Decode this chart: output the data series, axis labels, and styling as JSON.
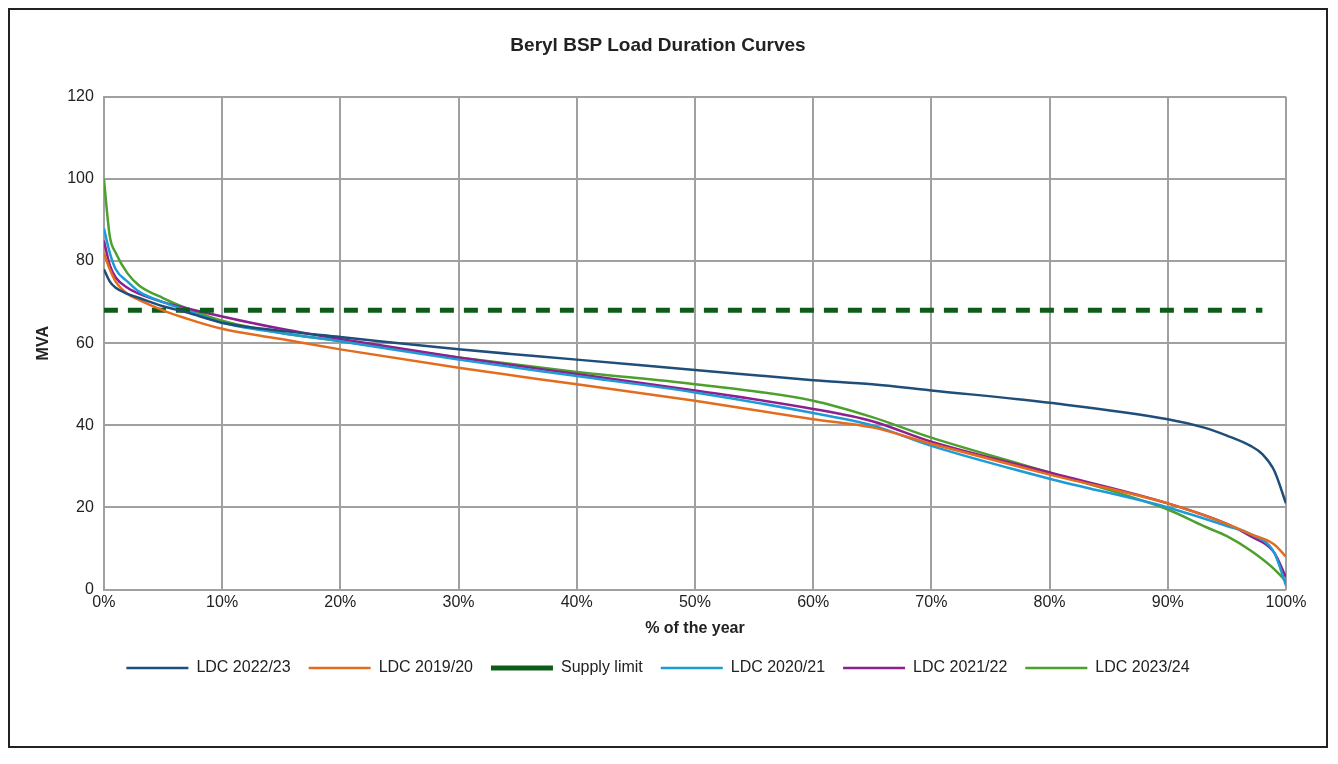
{
  "chart_data": {
    "type": "line",
    "title": "Beryl BSP Load Duration Curves",
    "xlabel": "% of the year",
    "ylabel": "MVA",
    "xlim": [
      0,
      100
    ],
    "xticks": [
      {
        "value": 0,
        "label": "0%"
      },
      {
        "value": 10,
        "label": "10%"
      },
      {
        "value": 20,
        "label": "20%"
      },
      {
        "value": 30,
        "label": "30%"
      },
      {
        "value": 40,
        "label": "40%"
      },
      {
        "value": 50,
        "label": "50%"
      },
      {
        "value": 60,
        "label": "60%"
      },
      {
        "value": 70,
        "label": "70%"
      },
      {
        "value": 80,
        "label": "80%"
      },
      {
        "value": 90,
        "label": "90%"
      },
      {
        "value": 100,
        "label": "100%"
      }
    ],
    "ylim": [
      0,
      120
    ],
    "yticks": [
      0,
      20,
      40,
      60,
      80,
      100,
      120
    ],
    "grid": true,
    "legend": "bottom",
    "marker": "none",
    "series": [
      {
        "name": "LDC 2022/23",
        "color": "#1f4e79",
        "x": [
          0,
          0.5,
          1,
          2,
          3,
          5,
          7,
          10,
          15,
          20,
          30,
          40,
          50,
          60,
          65,
          70,
          80,
          90,
          93,
          95,
          97,
          98,
          99,
          100
        ],
        "values": [
          78,
          75,
          73.5,
          72,
          71,
          69,
          67.5,
          65,
          63,
          61.5,
          58.5,
          56,
          53.5,
          51,
          50,
          48.5,
          45.5,
          41.5,
          39.5,
          37.5,
          35,
          33,
          29,
          21
        ]
      },
      {
        "name": "LDC 2019/20",
        "color": "#e46c1f",
        "x": [
          0,
          0.5,
          1,
          2,
          3,
          5,
          7,
          10,
          15,
          20,
          30,
          40,
          50,
          60,
          65,
          70,
          80,
          90,
          95,
          97,
          99,
          100
        ],
        "values": [
          82,
          78,
          75,
          72,
          70.5,
          68,
          66,
          63.5,
          61,
          58.5,
          54,
          50,
          46,
          41.5,
          39.5,
          35.5,
          28,
          21,
          16,
          13.5,
          11,
          8
        ]
      },
      {
        "name": "Supply limit",
        "color": "#0e5c1a",
        "line_style": "dashed",
        "x": [
          0,
          98
        ],
        "values": [
          68,
          68
        ]
      },
      {
        "name": "LDC 2020/21",
        "color": "#1e9bd7",
        "x": [
          0,
          0.5,
          1,
          2,
          3,
          5,
          7,
          10,
          15,
          20,
          30,
          40,
          50,
          60,
          65,
          70,
          80,
          90,
          95,
          97,
          99,
          100
        ],
        "values": [
          88,
          82,
          78,
          75,
          72.5,
          70,
          68,
          65,
          62.5,
          60.5,
          56,
          52,
          48,
          43,
          40,
          35,
          27,
          20,
          15.5,
          13.5,
          9,
          1
        ]
      },
      {
        "name": "LDC 2021/22",
        "color": "#8e1f8e",
        "x": [
          0,
          0.5,
          1,
          2,
          3,
          5,
          7,
          10,
          15,
          20,
          30,
          40,
          50,
          60,
          65,
          70,
          80,
          90,
          95,
          97,
          99,
          100
        ],
        "values": [
          85,
          79,
          76,
          73.5,
          72,
          70,
          68.5,
          66.5,
          63.5,
          61,
          56.5,
          52.5,
          48.5,
          44,
          41,
          36,
          28.5,
          21,
          16,
          13,
          9,
          3
        ]
      },
      {
        "name": "LDC 2023/24",
        "color": "#4ca02c",
        "x": [
          0,
          0.5,
          1,
          2,
          3,
          5,
          7,
          10,
          15,
          20,
          30,
          40,
          50,
          60,
          65,
          70,
          80,
          90,
          93,
          95,
          97,
          99,
          100
        ],
        "values": [
          100,
          86,
          82,
          77,
          74,
          71,
          68.5,
          65.5,
          62.5,
          60.5,
          56.5,
          53,
          50,
          46,
          42,
          37,
          28.5,
          19.5,
          15.5,
          13,
          9.5,
          5,
          2
        ]
      }
    ]
  }
}
